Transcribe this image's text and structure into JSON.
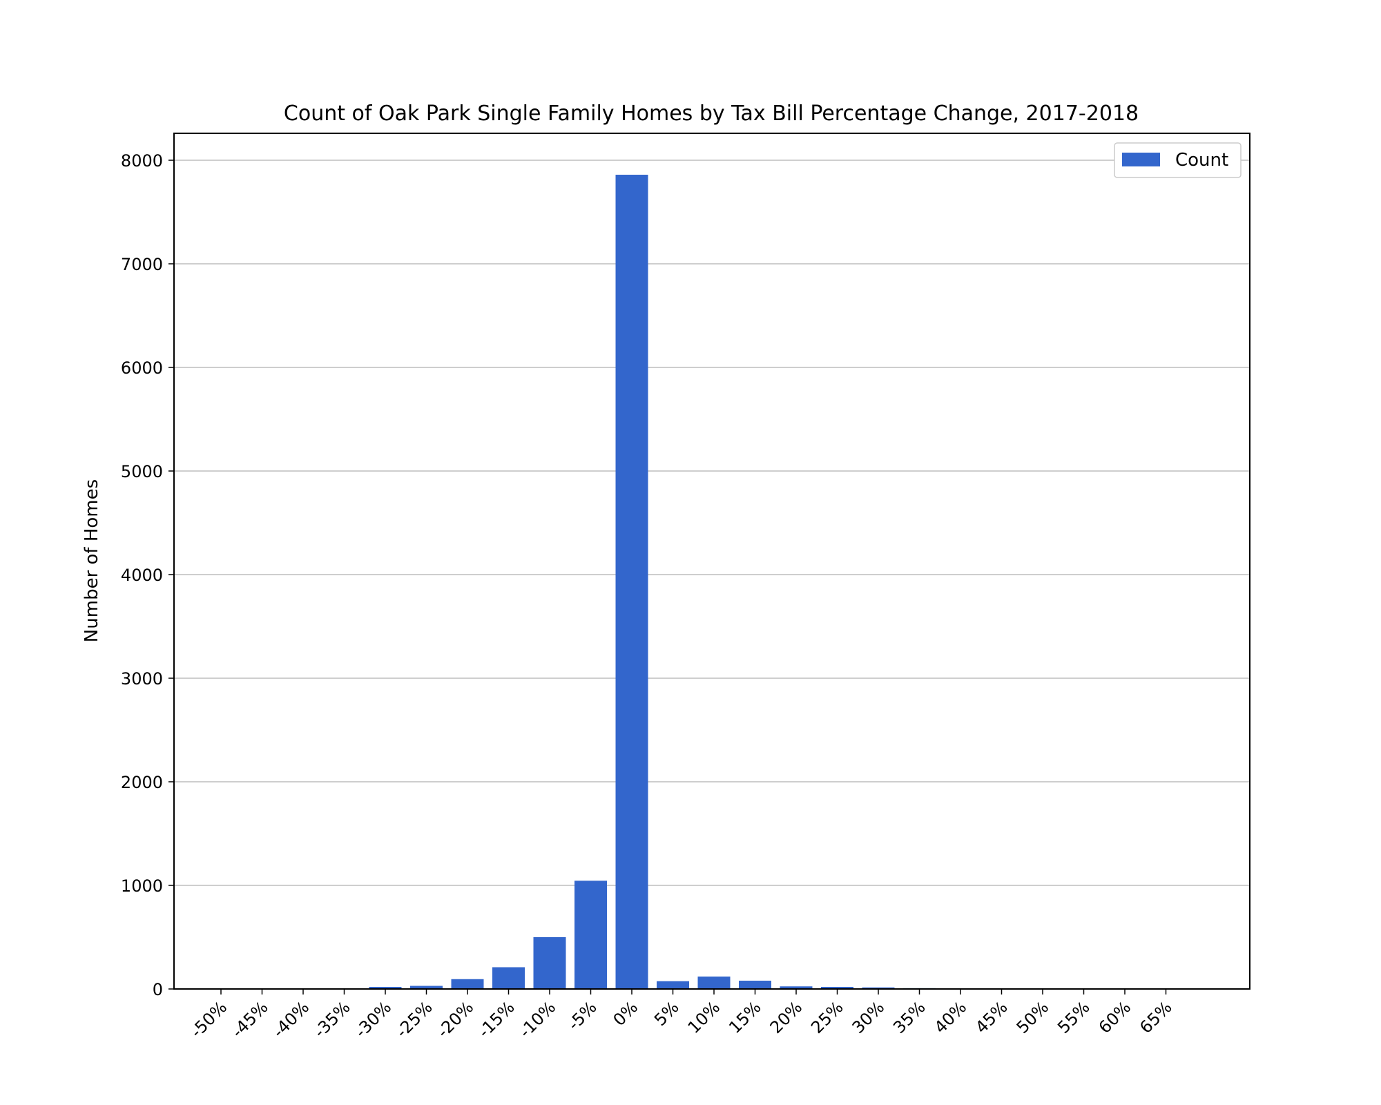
{
  "chart_data": {
    "type": "bar",
    "title": "Count of Oak Park Single Family Homes by Tax Bill Percentage Change, 2017-2018",
    "xlabel": "",
    "ylabel": "Number of Homes",
    "categories": [
      "-50%",
      "-45%",
      "-40%",
      "-35%",
      "-30%",
      "-25%",
      "-20%",
      "-15%",
      "-10%",
      "-5%",
      "0%",
      "5%",
      "10%",
      "15%",
      "20%",
      "25%",
      "30%",
      "35%",
      "40%",
      "45%",
      "50%",
      "55%",
      "60%",
      "65%"
    ],
    "series": [
      {
        "name": "Count",
        "color": "#3366cc",
        "values": [
          0,
          0,
          0,
          0,
          20,
          30,
          95,
          210,
          500,
          1045,
          7860,
          75,
          120,
          80,
          25,
          20,
          15,
          8,
          5,
          5,
          0,
          0,
          0,
          0
        ]
      }
    ],
    "ylim": [
      0,
      8260
    ],
    "yticks": [
      0,
      1000,
      2000,
      3000,
      4000,
      5000,
      6000,
      7000,
      8000
    ],
    "grid": "y",
    "legend": "top-right"
  }
}
